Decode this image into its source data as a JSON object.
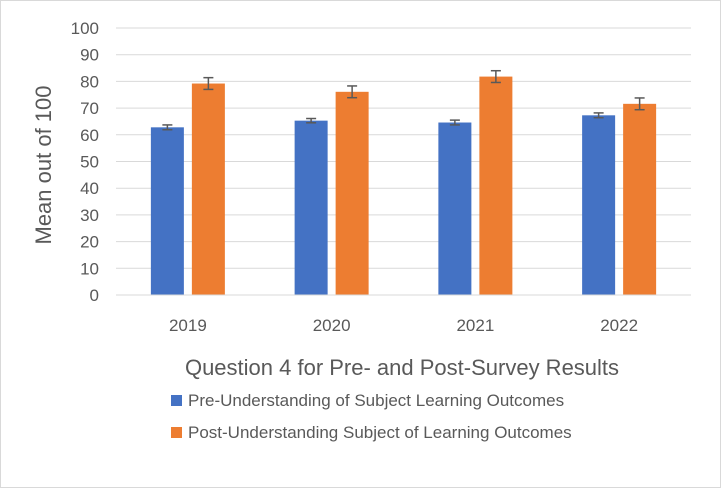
{
  "chart_data": {
    "type": "bar",
    "title": "",
    "xlabel": "Question 4 for Pre- and Post-Survey Results",
    "ylabel": "Mean out of 100",
    "ylim": [
      0,
      100
    ],
    "y_ticks": [
      0,
      10,
      20,
      30,
      40,
      50,
      60,
      70,
      80,
      90,
      100
    ],
    "grid": true,
    "legend_position": "bottom",
    "categories": [
      "2019",
      "2020",
      "2021",
      "2022"
    ],
    "series": [
      {
        "name": "Pre-Understanding of Subject Learning Outcomes",
        "color": "#4472c4",
        "values": [
          62.8,
          65.3,
          64.6,
          67.3
        ],
        "error": [
          0.9,
          0.8,
          0.9,
          0.9
        ]
      },
      {
        "name": "Post-Understanding Subject of Learning Outcomes",
        "color": "#ed7d31",
        "values": [
          79.2,
          76.1,
          81.8,
          71.6
        ],
        "error": [
          2.2,
          2.2,
          2.2,
          2.2
        ]
      }
    ]
  }
}
